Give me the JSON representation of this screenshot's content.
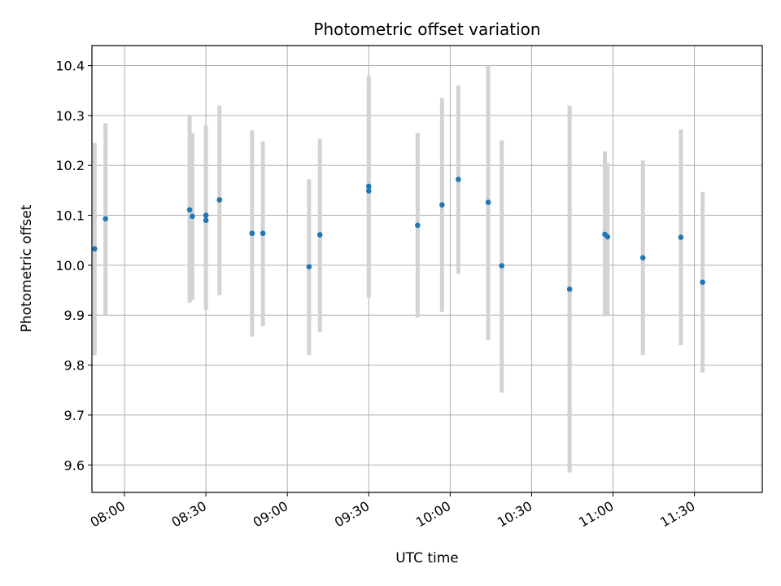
{
  "chart_data": {
    "type": "scatter",
    "title": "Photometric offset variation",
    "xlabel": "UTC time",
    "ylabel": "Photometric offset",
    "grid": true,
    "legend": "none",
    "xlim": [
      "07:48",
      "11:55"
    ],
    "ylim": [
      9.545,
      10.44
    ],
    "x_ticks": [
      "08:00",
      "08:30",
      "09:00",
      "09:30",
      "10:00",
      "10:30",
      "11:00",
      "11:30"
    ],
    "y_ticks": [
      "9.6",
      "9.7",
      "9.8",
      "9.9",
      "10.0",
      "10.1",
      "10.2",
      "10.3",
      "10.4"
    ],
    "colors": {
      "point": "#1f77b4",
      "errorbar": "#d3d3d3",
      "grid": "#b0b0b0"
    },
    "series": [
      {
        "points": [
          {
            "x": "07:49",
            "y": 10.033,
            "yerr_low": 9.82,
            "yerr_high": 10.245
          },
          {
            "x": "07:53",
            "y": 10.093,
            "yerr_low": 9.9,
            "yerr_high": 10.285
          },
          {
            "x": "08:24",
            "y": 10.111,
            "yerr_low": 9.925,
            "yerr_high": 10.3
          },
          {
            "x": "08:25",
            "y": 10.098,
            "yerr_low": 9.93,
            "yerr_high": 10.265
          },
          {
            "x": "08:30",
            "y": 10.1,
            "yerr_low": 9.91,
            "yerr_high": 10.28
          },
          {
            "x": "08:30",
            "y": 10.09,
            "yerr_low": 9.915,
            "yerr_high": 10.275
          },
          {
            "x": "08:35",
            "y": 10.131,
            "yerr_low": 9.94,
            "yerr_high": 10.32
          },
          {
            "x": "08:47",
            "y": 10.064,
            "yerr_low": 9.857,
            "yerr_high": 10.27
          },
          {
            "x": "08:51",
            "y": 10.064,
            "yerr_low": 9.878,
            "yerr_high": 10.248
          },
          {
            "x": "09:08",
            "y": 9.997,
            "yerr_low": 9.82,
            "yerr_high": 10.172
          },
          {
            "x": "09:12",
            "y": 10.061,
            "yerr_low": 9.866,
            "yerr_high": 10.253
          },
          {
            "x": "09:30",
            "y": 10.158,
            "yerr_low": 9.935,
            "yerr_high": 10.38
          },
          {
            "x": "09:30",
            "y": 10.149,
            "yerr_low": 9.94,
            "yerr_high": 10.36
          },
          {
            "x": "09:48",
            "y": 10.08,
            "yerr_low": 9.895,
            "yerr_high": 10.265
          },
          {
            "x": "09:57",
            "y": 10.121,
            "yerr_low": 9.907,
            "yerr_high": 10.335
          },
          {
            "x": "10:03",
            "y": 10.172,
            "yerr_low": 9.983,
            "yerr_high": 10.36
          },
          {
            "x": "10:14",
            "y": 10.126,
            "yerr_low": 9.85,
            "yerr_high": 10.4
          },
          {
            "x": "10:19",
            "y": 9.999,
            "yerr_low": 9.745,
            "yerr_high": 10.25
          },
          {
            "x": "10:44",
            "y": 9.952,
            "yerr_low": 9.585,
            "yerr_high": 10.32
          },
          {
            "x": "10:57",
            "y": 10.062,
            "yerr_low": 9.898,
            "yerr_high": 10.228
          },
          {
            "x": "10:58",
            "y": 10.057,
            "yerr_low": 9.9,
            "yerr_high": 10.205
          },
          {
            "x": "11:11",
            "y": 10.015,
            "yerr_low": 9.82,
            "yerr_high": 10.21
          },
          {
            "x": "11:25",
            "y": 10.056,
            "yerr_low": 9.84,
            "yerr_high": 10.272
          },
          {
            "x": "11:33",
            "y": 9.966,
            "yerr_low": 9.785,
            "yerr_high": 10.147
          }
        ]
      }
    ]
  }
}
